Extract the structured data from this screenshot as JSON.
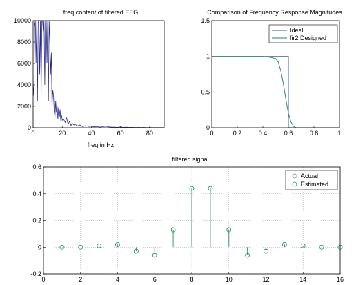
{
  "colors": {
    "axis": "#000000",
    "grid": "#a0a0a0",
    "eeg": "#2a2a8a",
    "ideal": "#3a5aa0",
    "designed": "#2a8a5a",
    "actual": "#7a8aa0",
    "estimated": "#2a9a5a"
  },
  "chart_data": [
    {
      "type": "line",
      "title": "freq content of filtered EEG",
      "xlabel": "freq in Hz",
      "ylabel": "",
      "xlim": [
        0,
        90
      ],
      "ylim": [
        0,
        10000
      ],
      "xticks": [
        0,
        20,
        40,
        60,
        80
      ],
      "yticks": [
        0,
        2000,
        4000,
        6000,
        8000,
        10000
      ],
      "grid": false,
      "series": [
        {
          "x": [
            0,
            0.5,
            1,
            1.5,
            2,
            2.5,
            3,
            3.5,
            4,
            4.5,
            5,
            5.5,
            6,
            6.5,
            7,
            7.5,
            8,
            8.5,
            9,
            9.5,
            10,
            10.5,
            11,
            11.5,
            12,
            12.5,
            13,
            13.5,
            14,
            14.5,
            15,
            15.5,
            16,
            16.5,
            17,
            17.5,
            18,
            18.5,
            19,
            19.5,
            20,
            21,
            22,
            23,
            24,
            25,
            26,
            27,
            28,
            29,
            30,
            32,
            34,
            36,
            38,
            40,
            42,
            44,
            46,
            48,
            50,
            52,
            54,
            56,
            58,
            60,
            62,
            64,
            66,
            68,
            70,
            72,
            74,
            76,
            78,
            80,
            82,
            84,
            86,
            88,
            90
          ],
          "y": [
            4000,
            3000,
            9500,
            10000,
            6000,
            10000,
            2500,
            10000,
            10000,
            5000,
            10000,
            3000,
            10000,
            10000,
            9000,
            10000,
            4000,
            10000,
            10000,
            6000,
            10000,
            2500,
            10000,
            8000,
            5000,
            7000,
            2000,
            3500,
            3000,
            1500,
            1000,
            2500,
            1400,
            2000,
            800,
            1900,
            1000,
            1700,
            600,
            1200,
            700,
            800,
            500,
            900,
            300,
            600,
            200,
            400,
            250,
            350,
            150,
            250,
            100,
            200,
            120,
            150,
            80,
            120,
            60,
            100,
            150,
            80,
            50,
            60,
            40,
            80,
            30,
            50,
            30,
            40,
            20,
            30,
            20,
            30,
            15,
            20,
            10,
            15,
            10,
            10,
            5
          ]
        }
      ]
    },
    {
      "type": "line",
      "title": "Comparison of Frequency Response Magnitudes",
      "xlabel": "",
      "ylabel": "",
      "xlim": [
        0,
        1
      ],
      "ylim": [
        0,
        1.5
      ],
      "xticks": [
        "0",
        "0.2",
        "0.4",
        "0.6",
        "0.8",
        "1"
      ],
      "yticks": [
        "0",
        "0.5",
        "1",
        "1.5"
      ],
      "grid": false,
      "legend": "top-right",
      "series": [
        {
          "name": "Ideal",
          "x": [
            0,
            0.6,
            0.6,
            1
          ],
          "y": [
            1,
            1,
            0,
            0
          ]
        },
        {
          "name": "fir2 Designed",
          "x": [
            0,
            0.1,
            0.2,
            0.3,
            0.4,
            0.45,
            0.5,
            0.52,
            0.54,
            0.56,
            0.58,
            0.6,
            0.62,
            0.64,
            0.66,
            0.7,
            0.8,
            0.9,
            1
          ],
          "y": [
            1,
            1,
            1,
            1,
            1,
            0.99,
            0.97,
            0.92,
            0.8,
            0.62,
            0.4,
            0.2,
            0.08,
            0.02,
            0.0,
            0,
            0,
            0,
            0
          ]
        }
      ]
    },
    {
      "type": "stem",
      "title": "filtered signal",
      "xlabel": "",
      "ylabel": "",
      "xlim": [
        0,
        16
      ],
      "ylim": [
        -0.2,
        0.6
      ],
      "xticks": [
        "0",
        "2",
        "4",
        "6",
        "8",
        "10",
        "12",
        "14",
        "16"
      ],
      "yticks": [
        "-0.2",
        "0",
        "0.2",
        "0.4",
        "0.6"
      ],
      "grid": true,
      "legend": "top-right",
      "x": [
        1,
        2,
        3,
        4,
        5,
        6,
        7,
        8,
        9,
        10,
        11,
        12,
        13,
        14,
        15,
        16
      ],
      "series": [
        {
          "name": "Actual",
          "values": [
            0,
            0,
            0.01,
            0.02,
            -0.03,
            -0.06,
            0.13,
            0.44,
            0.44,
            0.13,
            -0.06,
            -0.03,
            0.02,
            0.01,
            0,
            0
          ]
        },
        {
          "name": "Estimated",
          "values": [
            0,
            0,
            0.01,
            0.02,
            -0.03,
            -0.06,
            0.13,
            0.44,
            0.44,
            0.13,
            -0.06,
            -0.03,
            0.02,
            0.01,
            0,
            0
          ]
        }
      ]
    }
  ]
}
